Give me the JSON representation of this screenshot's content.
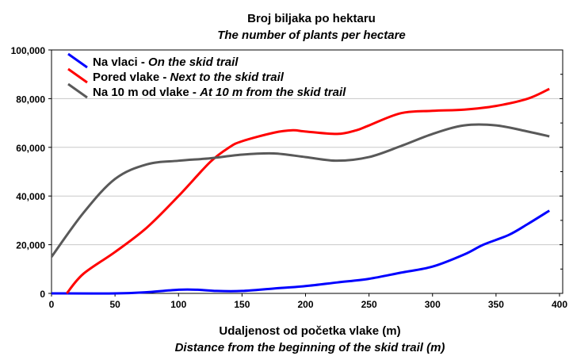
{
  "chart_data": {
    "type": "line",
    "title": "Broj biljaka po hektaru",
    "subtitle": "The number of plants per hectare",
    "xlabel": "Udaljenost od početka vlake (m)",
    "xlabel_en": "Distance from the beginning of the skid trail (m)",
    "ylabel": "",
    "xlim": [
      0,
      400
    ],
    "ylim": [
      0,
      100000
    ],
    "xticks": [
      "0",
      "50",
      "100",
      "150",
      "200",
      "250",
      "300",
      "350",
      "400"
    ],
    "yticks": [
      "0",
      "20,000",
      "40,000",
      "60,000",
      "80,000",
      "100,000"
    ],
    "grid": "horizontal",
    "legend_placement": "top-left",
    "series": [
      {
        "name": "Na vlaci",
        "name_en": "On the skid trail",
        "color": "#0000ff",
        "x": [
          0,
          50,
          75,
          100,
          115,
          130,
          150,
          175,
          200,
          225,
          250,
          275,
          300,
          325,
          340,
          360,
          375,
          392
        ],
        "y": [
          0,
          0,
          500,
          1500,
          1500,
          1000,
          1000,
          2000,
          3000,
          4500,
          6000,
          8500,
          11000,
          16000,
          20000,
          24000,
          28500,
          34000
        ]
      },
      {
        "name": "Pored vlake",
        "name_en": "Next to the skid trail",
        "color": "#ff0000",
        "x": [
          12,
          25,
          50,
          75,
          100,
          125,
          140,
          150,
          175,
          190,
          200,
          225,
          240,
          250,
          275,
          300,
          325,
          350,
          375,
          392
        ],
        "y": [
          0,
          8000,
          17000,
          27000,
          40000,
          54000,
          60000,
          62500,
          66000,
          67000,
          66500,
          65500,
          67000,
          69000,
          74000,
          75000,
          75500,
          77000,
          80000,
          84000
        ]
      },
      {
        "name": "Na 10 m od vlake",
        "name_en": "At 10 m from the skid trail",
        "color": "#595959",
        "x": [
          0,
          25,
          50,
          75,
          100,
          125,
          150,
          175,
          200,
          225,
          250,
          275,
          300,
          325,
          350,
          375,
          392
        ],
        "y": [
          15000,
          33000,
          47000,
          53000,
          54500,
          55500,
          57000,
          57500,
          56000,
          54500,
          56000,
          60500,
          65500,
          69000,
          69000,
          66500,
          64500
        ]
      }
    ]
  }
}
